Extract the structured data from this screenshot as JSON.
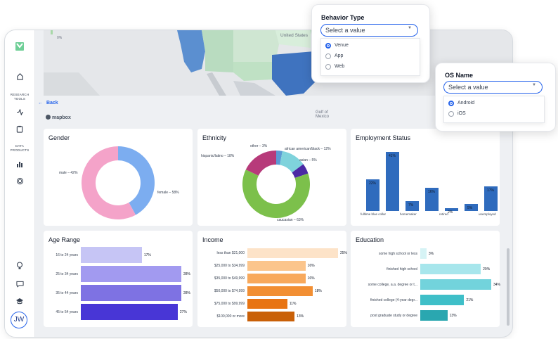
{
  "sidebar": {
    "research_tools_label": "RESEARCH\nTOOLS",
    "data_products_label": "DATA\nPRODUCTS",
    "avatar_initials": "JW"
  },
  "map": {
    "legend_value": "0%",
    "country_label": "United States",
    "mexico_label": "Mexico",
    "gulf_label": "Gulf of\nMexico",
    "attribution": "mapbox"
  },
  "nav": {
    "back_label": "Back"
  },
  "gender": {
    "title": "Gender",
    "slices": [
      {
        "label": "male – 42%",
        "value": 42,
        "color": "#7cadf0"
      },
      {
        "label": "female – 58%",
        "value": 58,
        "color": "#f4a3c9"
      }
    ]
  },
  "ethnicity": {
    "title": "Ethnicity",
    "slices": [
      {
        "label": "other – 3%",
        "value": 3,
        "color": "#5b9bd5"
      },
      {
        "label": "african american/black – 12%",
        "value": 12,
        "color": "#7fd3dc"
      },
      {
        "label": "asian – 5%",
        "value": 5,
        "color": "#4b2aa4"
      },
      {
        "label": "caucasian – 63%",
        "value": 63,
        "color": "#7cc04b"
      },
      {
        "label": "hispanic/latino – 18%",
        "value": 18,
        "color": "#b73a7a"
      }
    ]
  },
  "employment": {
    "title": "Employment Status",
    "categories": [
      "fulltime blue collar",
      "",
      "homemaker",
      "",
      "retired",
      "",
      "unemployed"
    ],
    "values": [
      22,
      41,
      7,
      16,
      2,
      5,
      17
    ],
    "value_labels": [
      "22%",
      "41%",
      "7%",
      "16%",
      "2%",
      "5%",
      "17%"
    ],
    "ymax": 45
  },
  "age": {
    "title": "Age Range",
    "categories": [
      "16 to 24 years",
      "25 to 34 years",
      "35 to 44 years",
      "45 to 54 years"
    ],
    "values": [
      17,
      28,
      28,
      27
    ],
    "value_labels": [
      "17%",
      "28%",
      "28%",
      "27%"
    ],
    "colors": [
      "#c6c5f5",
      "#a29af0",
      "#7e72e3",
      "#4836d6"
    ],
    "xmax": 28
  },
  "income": {
    "title": "Income",
    "categories": [
      "less than $21,000",
      "$25,000 to $34,999",
      "$35,000 to $49,999",
      "$50,000 to $74,999",
      "$75,000 to $99,999",
      "$100,000 or more"
    ],
    "values": [
      25,
      16,
      16,
      18,
      11,
      13
    ],
    "value_labels": [
      "25%",
      "16%",
      "16%",
      "18%",
      "11%",
      "13%"
    ],
    "colors": [
      "#fde3c8",
      "#fbc58c",
      "#f8a95c",
      "#f28f33",
      "#e87413",
      "#c96008"
    ],
    "xmax": 25
  },
  "education": {
    "title": "Education",
    "categories": [
      "some high school or less",
      "finished high school",
      "some college, a.a. degree or t...",
      "finished college (4-year degr...",
      "post graduate study or degree"
    ],
    "values": [
      3,
      29,
      34,
      21,
      13
    ],
    "value_labels": [
      "3%",
      "29%",
      "34%",
      "21%",
      "13%"
    ],
    "colors": [
      "#d6f3f5",
      "#a7e6ec",
      "#72d3dc",
      "#3fbfc8",
      "#2aa7b0"
    ],
    "xmax": 34
  },
  "behavior_popup": {
    "title": "Behavior Type",
    "placeholder": "Select a value",
    "options": [
      {
        "label": "Venue",
        "selected": true
      },
      {
        "label": "App",
        "selected": false
      },
      {
        "label": "Web",
        "selected": false
      }
    ]
  },
  "os_popup": {
    "title": "OS Name",
    "placeholder": "Select a value",
    "options": [
      {
        "label": "Android",
        "selected": true
      },
      {
        "label": "iOS",
        "selected": false
      }
    ]
  }
}
